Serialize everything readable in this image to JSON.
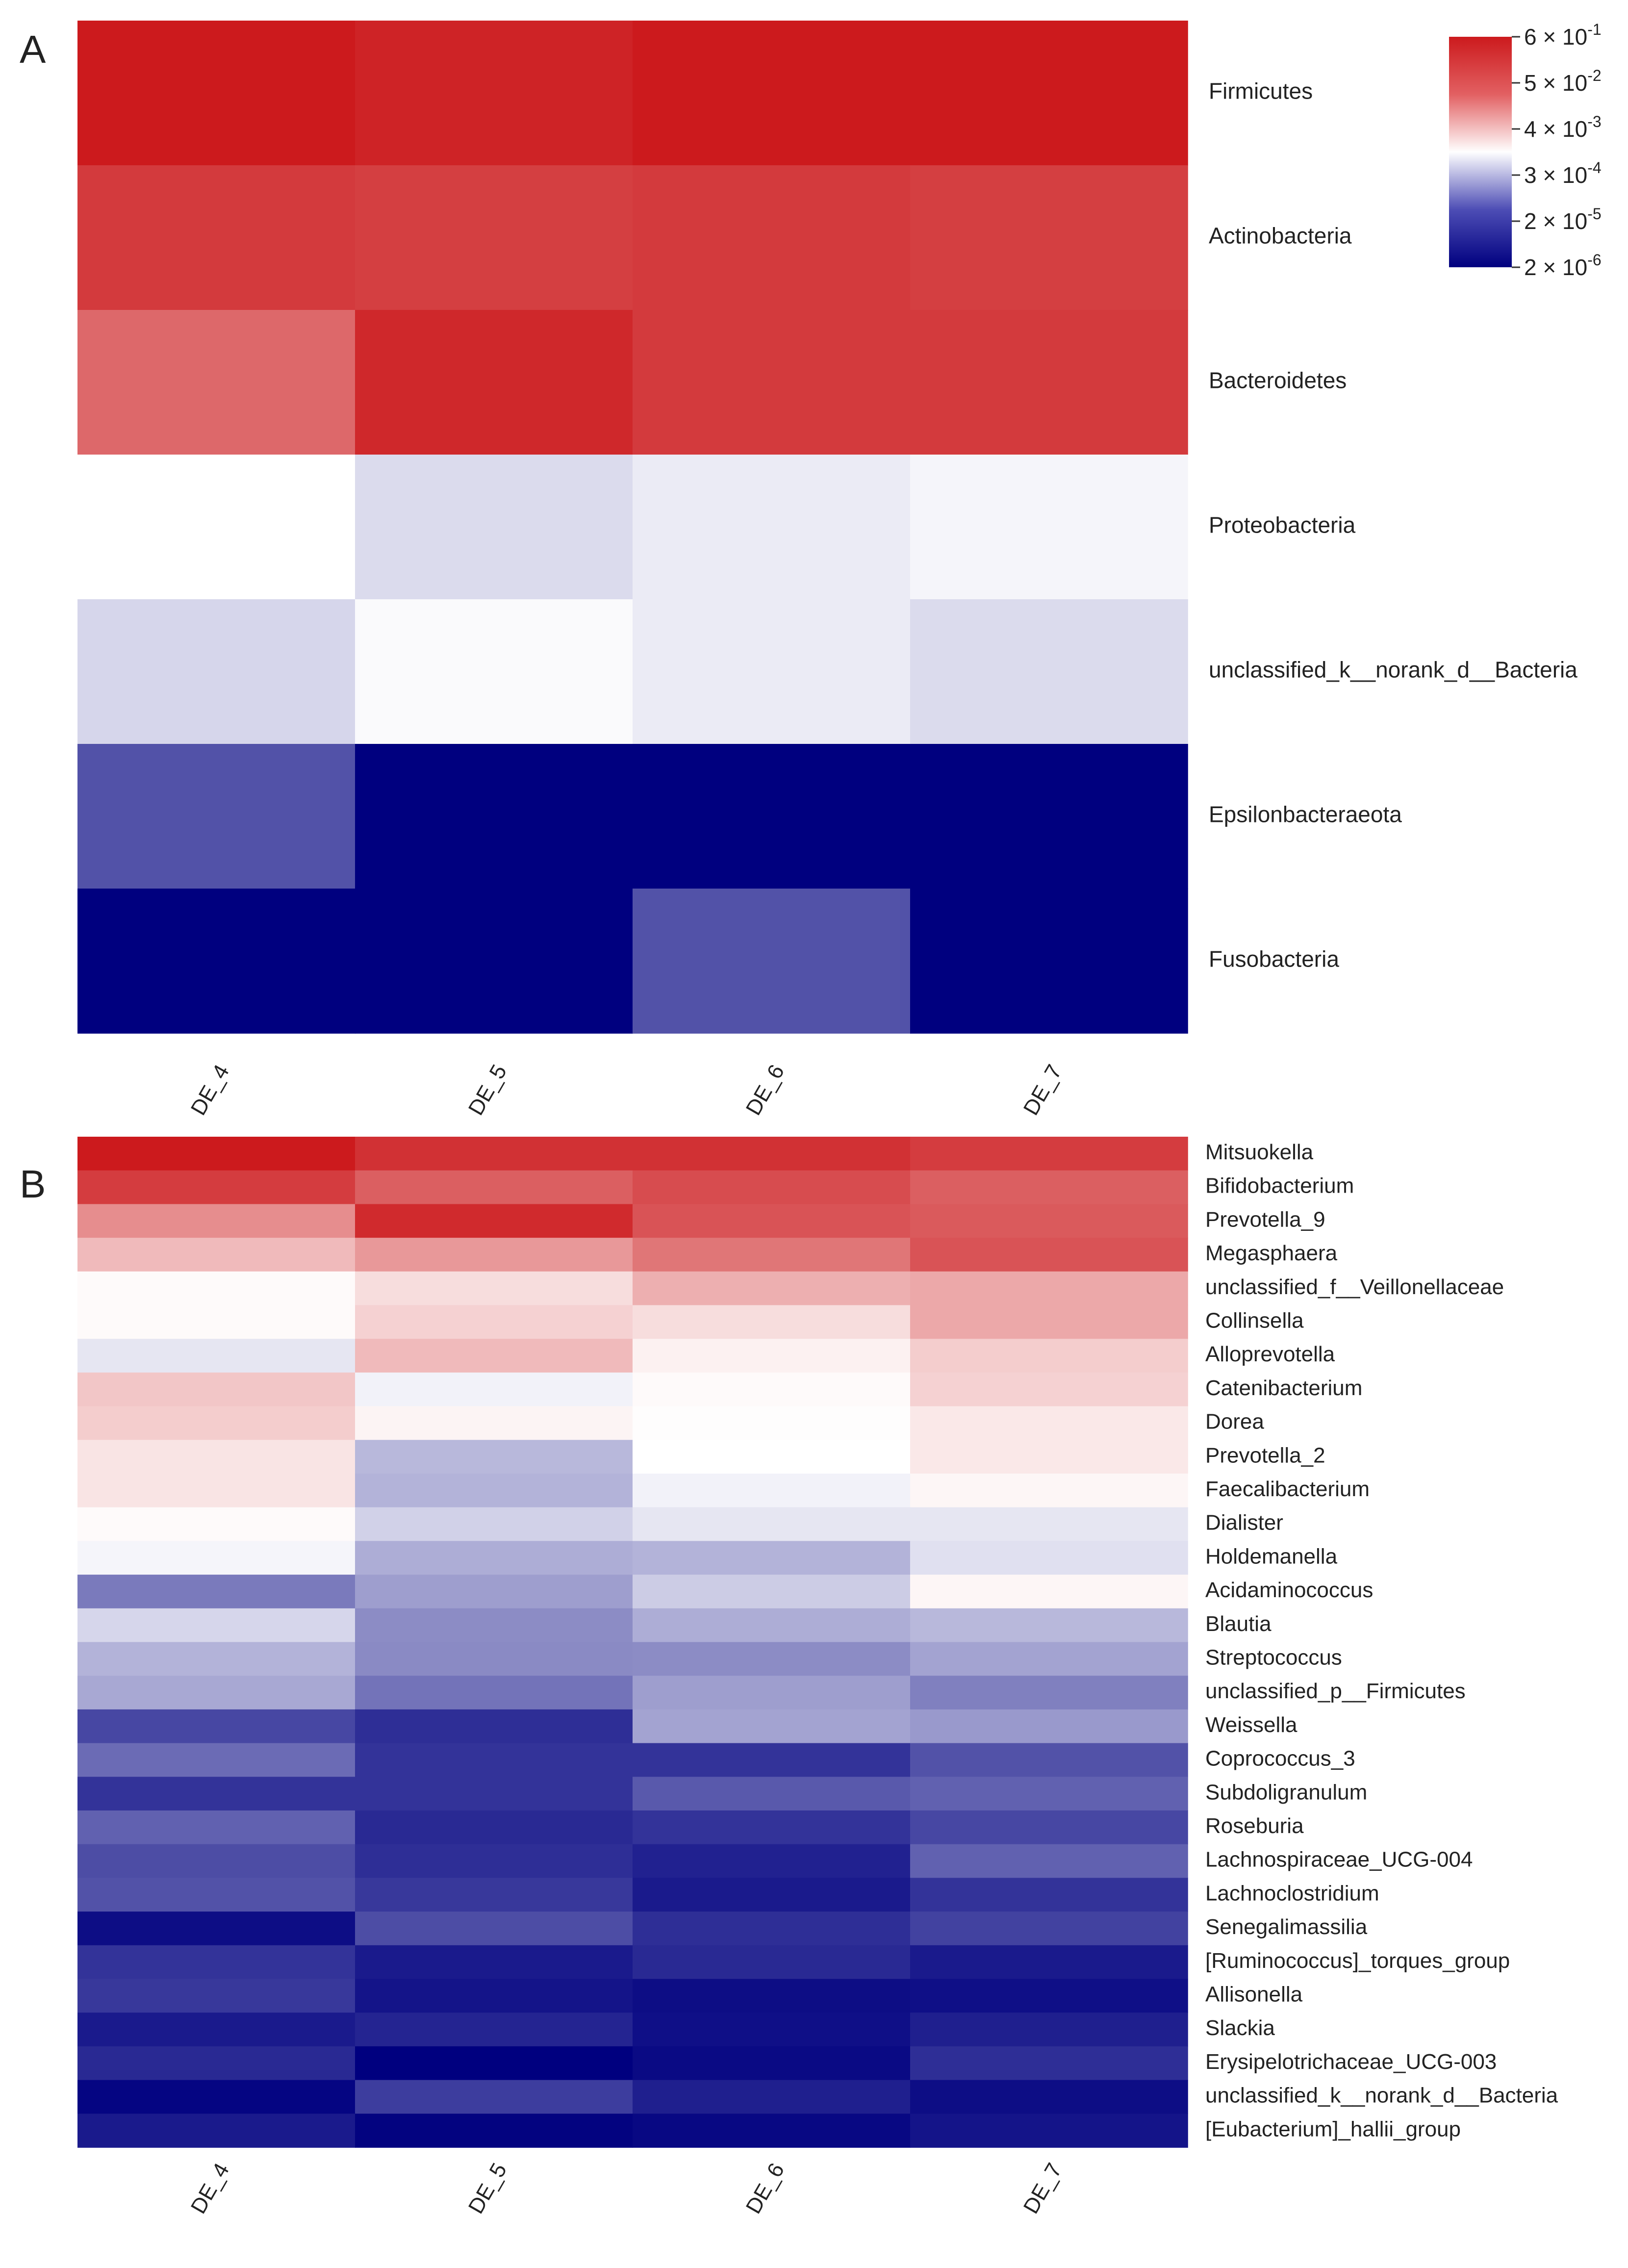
{
  "colors": {
    "low": "#00007f",
    "mid": "#ffffff",
    "high": "#cc1a1d"
  },
  "chart_data": [
    {
      "type": "heatmap",
      "panel_label": "A",
      "columns": [
        "DE_4",
        "DE_5",
        "DE_6",
        "DE_7"
      ],
      "rows": [
        "Firmicutes",
        "Actinobacteria",
        "Bacteroidetes",
        "Proteobacteria",
        "unclassified_k__norank_d__Bacteria",
        "Epsilonbacteraeota",
        "Fusobacteria"
      ],
      "values": [
        [
          1.0,
          0.96,
          1.0,
          1.0
        ],
        [
          0.86,
          0.84,
          0.86,
          0.84
        ],
        [
          0.66,
          0.94,
          0.86,
          0.86
        ],
        [
          0.0,
          -0.14,
          -0.08,
          -0.04
        ],
        [
          -0.16,
          -0.02,
          -0.08,
          -0.14
        ],
        [
          -0.68,
          -1.0,
          -1.0,
          -1.0
        ],
        [
          -1.0,
          -1.0,
          -0.68,
          -1.0
        ]
      ],
      "color_scale": {
        "type": "log",
        "domain": [
          2e-06,
          0.6
        ],
        "ticks": [
          {
            "coef": "6",
            "exp": "-1"
          },
          {
            "coef": "5",
            "exp": "-2"
          },
          {
            "coef": "4",
            "exp": "-3"
          },
          {
            "coef": "3",
            "exp": "-4"
          },
          {
            "coef": "2",
            "exp": "-5"
          },
          {
            "coef": "2",
            "exp": "-6"
          }
        ]
      }
    },
    {
      "type": "heatmap",
      "panel_label": "B",
      "columns": [
        "DE_4",
        "DE_5",
        "DE_6",
        "DE_7"
      ],
      "rows": [
        "Mitsuokella",
        "Bifidobacterium",
        "Prevotella_9",
        "Megasphaera",
        "unclassified_f__Veillonellaceae",
        "Collinsella",
        "Alloprevotella",
        "Catenibacterium",
        "Dorea",
        "Prevotella_2",
        "Faecalibacterium",
        "Dialister",
        "Holdemanella",
        "Acidaminococcus",
        "Blautia",
        "Streptococcus",
        "unclassified_p__Firmicutes",
        "Weissella",
        "Coprococcus_3",
        "Subdoligranulum",
        "Roseburia",
        "Lachnospiraceae_UCG-004",
        "Lachnoclostridium",
        "Senegalimassilia",
        "[Ruminococcus]_torques_group",
        "Allisonella",
        "Slackia",
        "Erysipelotrichaceae_UCG-003",
        "unclassified_k__norank_d__Bacteria",
        "[Eubacterium]_hallii_group"
      ],
      "values": [
        [
          1.0,
          0.9,
          0.9,
          0.85
        ],
        [
          0.85,
          0.7,
          0.78,
          0.7
        ],
        [
          0.5,
          0.93,
          0.75,
          0.72
        ],
        [
          0.3,
          0.45,
          0.6,
          0.75
        ],
        [
          0.02,
          0.15,
          0.35,
          0.38
        ],
        [
          0.02,
          0.2,
          0.15,
          0.38
        ],
        [
          -0.1,
          0.3,
          0.06,
          0.22
        ],
        [
          0.25,
          -0.05,
          0.02,
          0.2
        ],
        [
          0.22,
          0.05,
          0.01,
          0.1
        ],
        [
          0.12,
          -0.28,
          0.0,
          0.1
        ],
        [
          0.12,
          -0.3,
          -0.05,
          0.04
        ],
        [
          0.02,
          -0.18,
          -0.1,
          -0.1
        ],
        [
          -0.04,
          -0.32,
          -0.3,
          -0.12
        ],
        [
          -0.52,
          -0.38,
          -0.2,
          0.04
        ],
        [
          -0.16,
          -0.45,
          -0.32,
          -0.28
        ],
        [
          -0.3,
          -0.46,
          -0.45,
          -0.36
        ],
        [
          -0.34,
          -0.55,
          -0.38,
          -0.5
        ],
        [
          -0.72,
          -0.82,
          -0.36,
          -0.4
        ],
        [
          -0.58,
          -0.8,
          -0.8,
          -0.68
        ],
        [
          -0.8,
          -0.8,
          -0.65,
          -0.62
        ],
        [
          -0.62,
          -0.84,
          -0.8,
          -0.72
        ],
        [
          -0.7,
          -0.82,
          -0.87,
          -0.62
        ],
        [
          -0.68,
          -0.78,
          -0.9,
          -0.8
        ],
        [
          -0.95,
          -0.7,
          -0.82,
          -0.74
        ],
        [
          -0.8,
          -0.9,
          -0.84,
          -0.9
        ],
        [
          -0.78,
          -0.92,
          -0.95,
          -0.94
        ],
        [
          -0.9,
          -0.86,
          -0.94,
          -0.88
        ],
        [
          -0.84,
          -1.0,
          -0.96,
          -0.82
        ],
        [
          -0.98,
          -0.76,
          -0.88,
          -0.95
        ],
        [
          -0.9,
          -0.99,
          -0.97,
          -0.92
        ]
      ]
    }
  ]
}
